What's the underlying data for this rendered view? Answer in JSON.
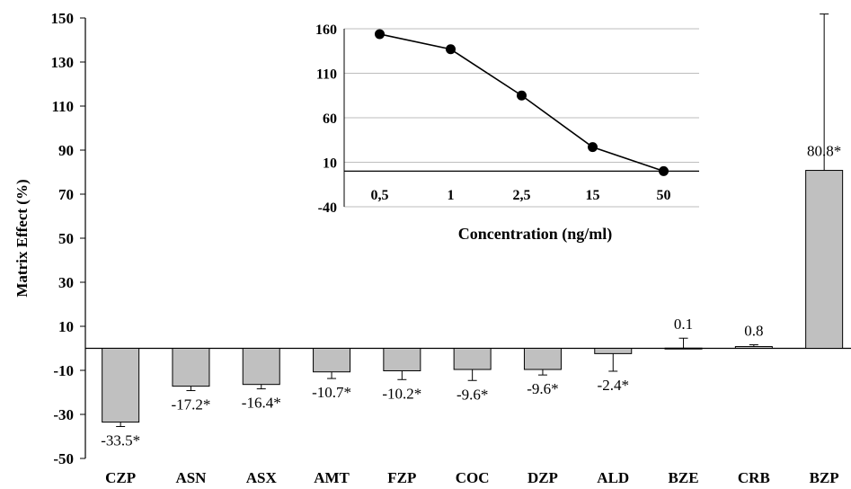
{
  "chart_data": [
    {
      "type": "bar",
      "ylabel": "Matrix  Effect  (%)",
      "xlabel": "",
      "ylim": [
        -50,
        150
      ],
      "yticks": [
        150,
        130,
        110,
        90,
        70,
        50,
        30,
        10,
        -10,
        -30,
        -50
      ],
      "categories": [
        "CZP",
        "ASN",
        "ASX",
        "AMT",
        "FZP",
        "COC",
        "DZP",
        "ALD",
        "BZE",
        "CRB",
        "BZP"
      ],
      "values": [
        -33.5,
        -17.2,
        -16.4,
        -10.7,
        -10.2,
        -9.6,
        -9.6,
        -2.4,
        0.1,
        0.8,
        80.8
      ],
      "errors": [
        2,
        2,
        2,
        3,
        4,
        5,
        2.5,
        8,
        4.5,
        0.8,
        71
      ],
      "data_labels": [
        "-33.5*",
        "-17.2*",
        "-16.4*",
        "-10.7*",
        "-10.2*",
        "-9.6*",
        "-9.6*",
        "-2.4*",
        "0.1",
        "0.8",
        "80.8*"
      ],
      "bar_color": "#c0c0c0",
      "grid": false
    },
    {
      "type": "line",
      "xlabel": "Concentration  (ng/ml)",
      "ylabel": "",
      "categories": [
        "0,5",
        "1",
        "2,5",
        "15",
        "50"
      ],
      "values": [
        154,
        137,
        85,
        27,
        0
      ],
      "ylim": [
        -40,
        160
      ],
      "yticks": [
        160,
        110,
        60,
        10,
        -40
      ],
      "grid": true,
      "line_color": "#000000"
    }
  ]
}
